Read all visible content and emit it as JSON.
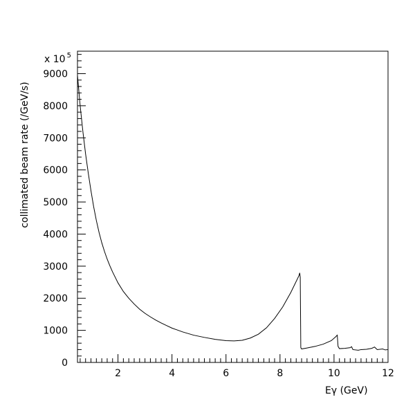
{
  "chart_data": {
    "type": "line",
    "title": "",
    "xlabel": "Eγ (GeV)",
    "ylabel": "collimated beam rate (/GeV/s)",
    "y_multiplier_label": "x 10",
    "y_multiplier_exponent": "5",
    "xlim": [
      0.5,
      12
    ],
    "ylim": [
      0,
      9700
    ],
    "x_ticks": [
      2,
      4,
      6,
      8,
      10,
      12
    ],
    "y_ticks": [
      0,
      1000,
      2000,
      3000,
      4000,
      5000,
      6000,
      7000,
      8000,
      9000
    ],
    "grid": false,
    "series": [
      {
        "values_xy": [
          [
            0.5,
            8950
          ],
          [
            0.6,
            8000
          ],
          [
            0.7,
            7200
          ],
          [
            0.8,
            6500
          ],
          [
            0.9,
            5900
          ],
          [
            1.0,
            5350
          ],
          [
            1.1,
            4850
          ],
          [
            1.2,
            4420
          ],
          [
            1.3,
            4050
          ],
          [
            1.4,
            3730
          ],
          [
            1.5,
            3460
          ],
          [
            1.6,
            3220
          ],
          [
            1.7,
            3010
          ],
          [
            1.8,
            2820
          ],
          [
            1.9,
            2650
          ],
          [
            2.0,
            2480
          ],
          [
            2.2,
            2210
          ],
          [
            2.4,
            2000
          ],
          [
            2.6,
            1820
          ],
          [
            2.8,
            1660
          ],
          [
            3.0,
            1530
          ],
          [
            3.2,
            1420
          ],
          [
            3.4,
            1320
          ],
          [
            3.6,
            1230
          ],
          [
            3.8,
            1150
          ],
          [
            4.0,
            1070
          ],
          [
            4.4,
            950
          ],
          [
            4.8,
            850
          ],
          [
            5.2,
            780
          ],
          [
            5.6,
            720
          ],
          [
            6.0,
            680
          ],
          [
            6.3,
            670
          ],
          [
            6.6,
            690
          ],
          [
            6.9,
            760
          ],
          [
            7.2,
            880
          ],
          [
            7.5,
            1080
          ],
          [
            7.8,
            1370
          ],
          [
            8.1,
            1730
          ],
          [
            8.4,
            2180
          ],
          [
            8.7,
            2700
          ],
          [
            8.73,
            2790
          ],
          [
            8.75,
            2650
          ],
          [
            8.77,
            460
          ],
          [
            8.8,
            420
          ],
          [
            9.0,
            450
          ],
          [
            9.3,
            500
          ],
          [
            9.6,
            570
          ],
          [
            9.9,
            680
          ],
          [
            10.05,
            790
          ],
          [
            10.12,
            850
          ],
          [
            10.15,
            500
          ],
          [
            10.2,
            430
          ],
          [
            10.4,
            440
          ],
          [
            10.6,
            460
          ],
          [
            10.65,
            490
          ],
          [
            10.7,
            400
          ],
          [
            10.9,
            380
          ],
          [
            11.0,
            400
          ],
          [
            11.2,
            410
          ],
          [
            11.4,
            440
          ],
          [
            11.5,
            480
          ],
          [
            11.6,
            400
          ],
          [
            11.8,
            420
          ],
          [
            11.9,
            390
          ],
          [
            12.0,
            400
          ]
        ]
      }
    ]
  }
}
